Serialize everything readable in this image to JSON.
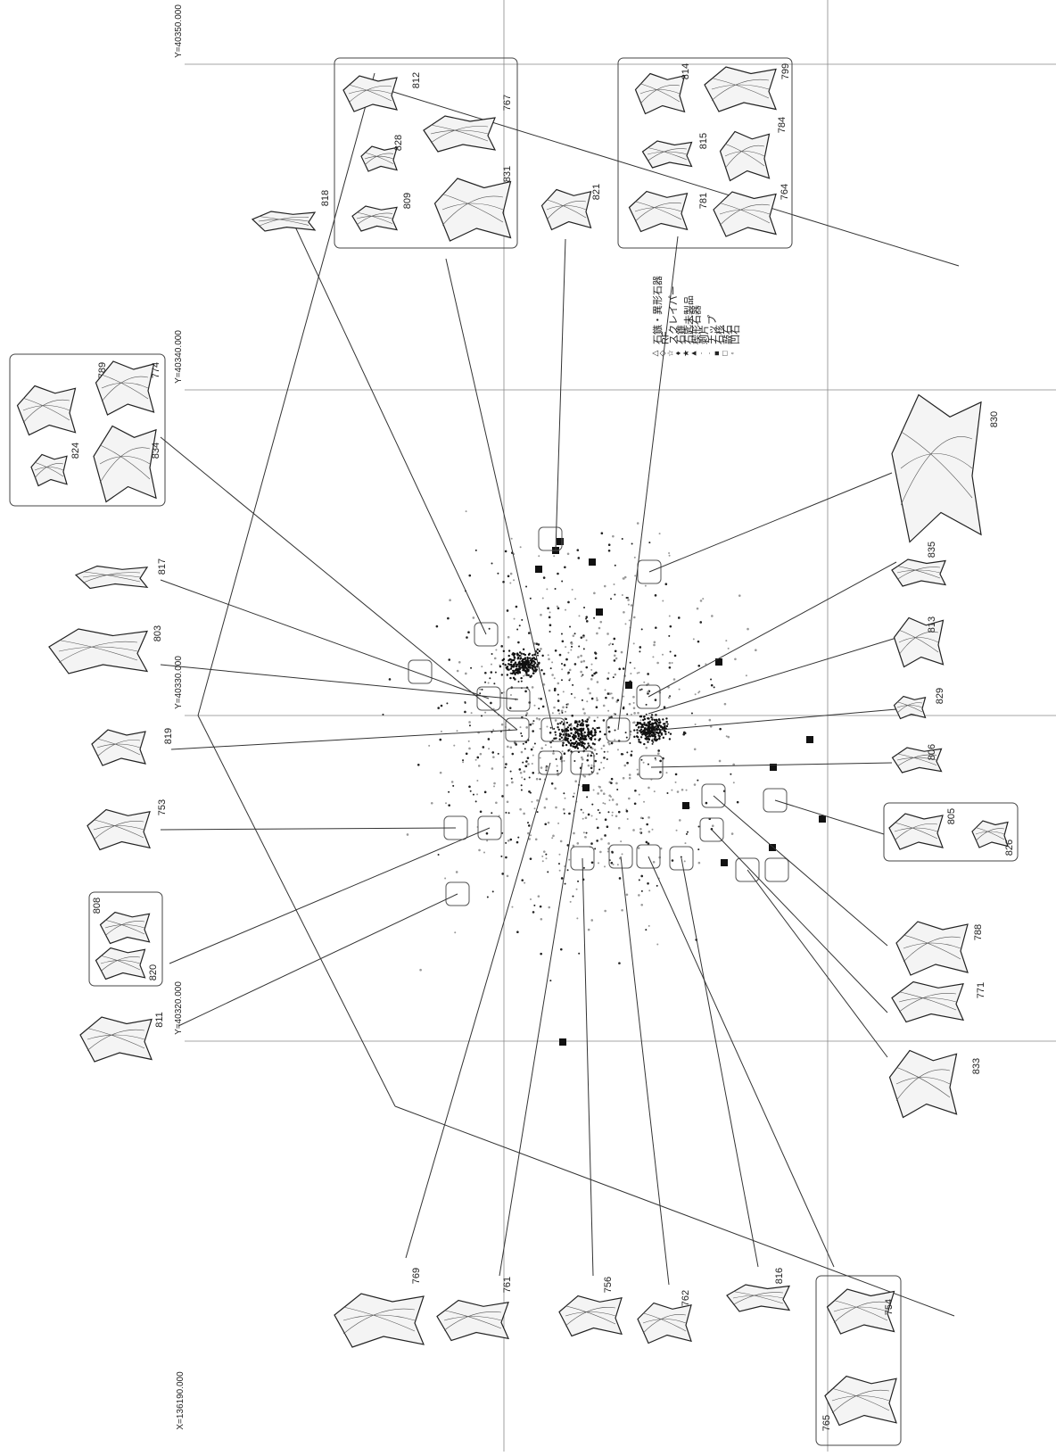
{
  "grid_labels": [
    "Y=40350.000",
    "Y=40340.000",
    "Y=40330.000",
    "Y=40320.000",
    "X=136190.000"
  ],
  "legend": [
    {
      "symbol": "△",
      "label": "石鏃・異形石器"
    },
    {
      "symbol": "◇",
      "label": "RF"
    },
    {
      "symbol": "☆",
      "label": "スクレイパー"
    },
    {
      "symbol": "♦",
      "label": "石錐"
    },
    {
      "symbol": "★",
      "label": "石匙未製品"
    },
    {
      "symbol": "▲",
      "label": "楔形石器"
    },
    {
      "symbol": "·",
      "label": "剥片"
    },
    {
      "symbol": "·",
      "label": "チップ"
    },
    {
      "symbol": "■",
      "label": "石核"
    },
    {
      "symbol": "□",
      "label": "敲石"
    },
    {
      "symbol": "◦",
      "label": "凹石"
    }
  ],
  "artifacts": [
    "812",
    "767",
    "828",
    "809",
    "831",
    "814",
    "799",
    "815",
    "784",
    "781",
    "764",
    "821",
    "818",
    "789",
    "774",
    "824",
    "834",
    "817",
    "803",
    "819",
    "753",
    "808",
    "820",
    "811",
    "830",
    "835",
    "813",
    "829",
    "806",
    "805",
    "826",
    "788",
    "771",
    "833",
    "769",
    "761",
    "756",
    "762",
    "816",
    "754",
    "765"
  ]
}
